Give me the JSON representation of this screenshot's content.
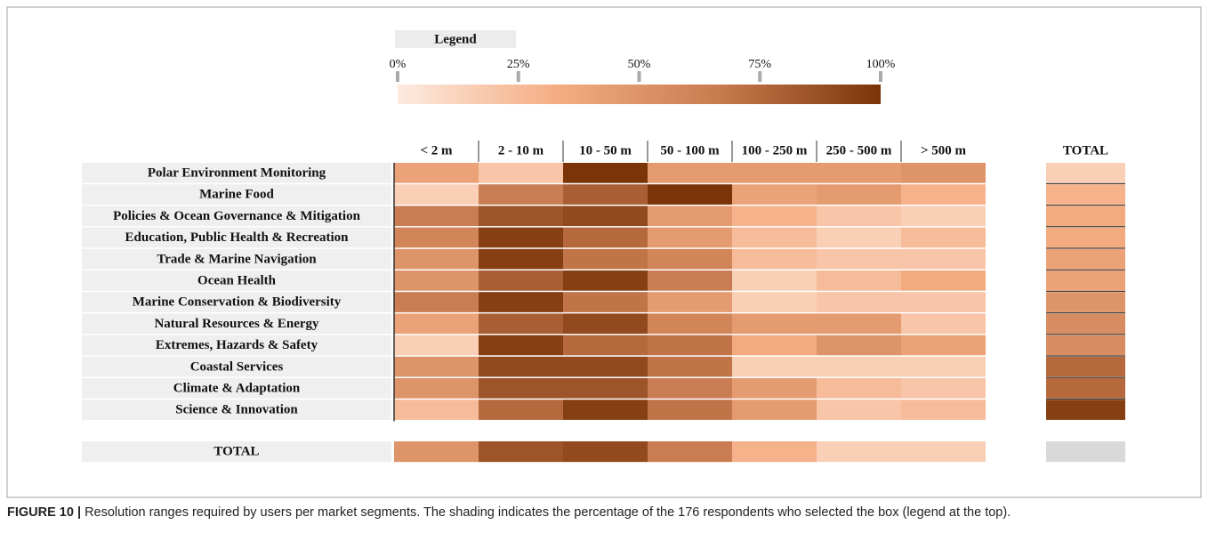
{
  "chart_data": {
    "type": "heatmap",
    "legend_title": "Legend",
    "clim": [
      0,
      100
    ],
    "cticks": [
      {
        "value": 0,
        "label": "0%"
      },
      {
        "value": 25,
        "label": "25%"
      },
      {
        "value": 50,
        "label": "50%"
      },
      {
        "value": 75,
        "label": "75%"
      },
      {
        "value": 100,
        "label": "100%"
      }
    ],
    "colors": [
      "#fdebe0",
      "#f4ac82",
      "#c87b4f",
      "#7a3408"
    ],
    "columns": [
      "< 2 m",
      "2 - 10 m",
      "10 - 50 m",
      "50 - 100 m",
      "100 - 250 m",
      "250 - 500 m",
      "> 500 m"
    ],
    "rows": [
      "Polar Environment Monitoring",
      "Marine Food",
      "Policies & Ocean Governance & Mitigation",
      "Education, Public Health & Recreation",
      "Trade & Marine Navigation",
      "Ocean Health",
      "Marine Conservation & Biodiversity",
      "Natural Resources & Energy",
      "Extremes, Hazards & Safety",
      "Coastal Services",
      "Climate & Adaptation",
      "Science & Innovation"
    ],
    "values": [
      [
        40,
        20,
        100,
        45,
        45,
        45,
        50
      ],
      [
        15,
        65,
        80,
        100,
        40,
        45,
        30
      ],
      [
        65,
        85,
        90,
        45,
        30,
        20,
        15
      ],
      [
        60,
        95,
        75,
        45,
        25,
        15,
        25
      ],
      [
        50,
        95,
        70,
        60,
        25,
        20,
        20
      ],
      [
        50,
        80,
        95,
        65,
        15,
        25,
        35
      ],
      [
        65,
        95,
        70,
        45,
        15,
        20,
        20
      ],
      [
        40,
        80,
        90,
        60,
        45,
        45,
        20
      ],
      [
        15,
        95,
        75,
        70,
        35,
        50,
        40
      ],
      [
        50,
        90,
        90,
        70,
        15,
        15,
        15
      ],
      [
        50,
        85,
        85,
        65,
        45,
        25,
        20
      ],
      [
        25,
        75,
        95,
        70,
        45,
        20,
        25
      ]
    ],
    "total_column_label": "TOTAL",
    "total_column": [
      15,
      30,
      35,
      35,
      40,
      40,
      50,
      55,
      55,
      75,
      75,
      95
    ],
    "total_row_label": "TOTAL",
    "total_row": [
      50,
      85,
      90,
      65,
      30,
      15,
      15
    ]
  },
  "caption": {
    "label": "FIGURE 10 |",
    "text": "Resolution ranges required by users per market segments. The shading indicates the percentage of the 176 respondents who selected the box (legend at the top)."
  }
}
